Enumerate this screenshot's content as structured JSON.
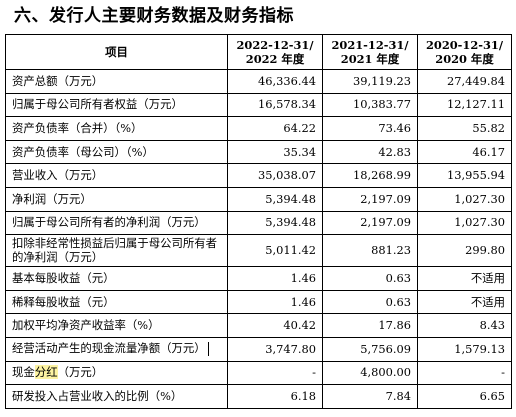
{
  "section": {
    "title": "六、发行人主要财务数据及财务指标"
  },
  "table": {
    "headers": {
      "item": "项目",
      "col1_line1": "2022-12-31/",
      "col1_line2": "2022 年度",
      "col2_line1": "2021-12-31/",
      "col2_line2": "2021 年度",
      "col3_line1": "2020-12-31/",
      "col3_line2": "2020 年度"
    },
    "rows": [
      {
        "label": "资产总额（万元）",
        "v2022": "46,336.44",
        "v2021": "39,119.23",
        "v2020": "27,449.84"
      },
      {
        "label": "归属于母公司所有者权益（万元）",
        "v2022": "16,578.34",
        "v2021": "10,383.77",
        "v2020": "12,127.11"
      },
      {
        "label": "资产负债率（合并）（%）",
        "v2022": "64.22",
        "v2021": "73.46",
        "v2020": "55.82"
      },
      {
        "label": "资产负债率（母公司）（%）",
        "v2022": "35.34",
        "v2021": "42.83",
        "v2020": "46.17"
      },
      {
        "label": "营业收入（万元）",
        "v2022": "35,038.07",
        "v2021": "18,268.99",
        "v2020": "13,955.94"
      },
      {
        "label": "净利润（万元）",
        "v2022": "5,394.48",
        "v2021": "2,197.09",
        "v2020": "1,027.30"
      },
      {
        "label": "归属于母公司所有者的净利润（万元）",
        "v2022": "5,394.48",
        "v2021": "2,197.09",
        "v2020": "1,027.30"
      },
      {
        "label": "扣除非经常性损益后归属于母公司所有者的净利润（万元）",
        "v2022": "5,011.42",
        "v2021": "881.23",
        "v2020": "299.80"
      },
      {
        "label": "基本每股收益（元）",
        "v2022": "1.46",
        "v2021": "0.63",
        "v2020": "不适用"
      },
      {
        "label": "稀释每股收益（元）",
        "v2022": "1.46",
        "v2021": "0.63",
        "v2020": "不适用"
      },
      {
        "label": "加权平均净资产收益率（%）",
        "v2022": "40.42",
        "v2021": "17.86",
        "v2020": "8.43"
      },
      {
        "label": "经营活动产生的现金流量净额（万元）",
        "v2022": "3,747.80",
        "v2021": "5,756.09",
        "v2020": "1,579.13"
      },
      {
        "label_prefix": "现金",
        "label_highlight": "分红",
        "label_suffix": "（万元）",
        "v2022": "-",
        "v2021": "4,800.00",
        "v2020": "-"
      },
      {
        "label": "研发投入占营业收入的比例（%）",
        "v2022": "6.18",
        "v2021": "7.84",
        "v2020": "6.65"
      }
    ],
    "highlight_color": "#fdf3a2"
  }
}
